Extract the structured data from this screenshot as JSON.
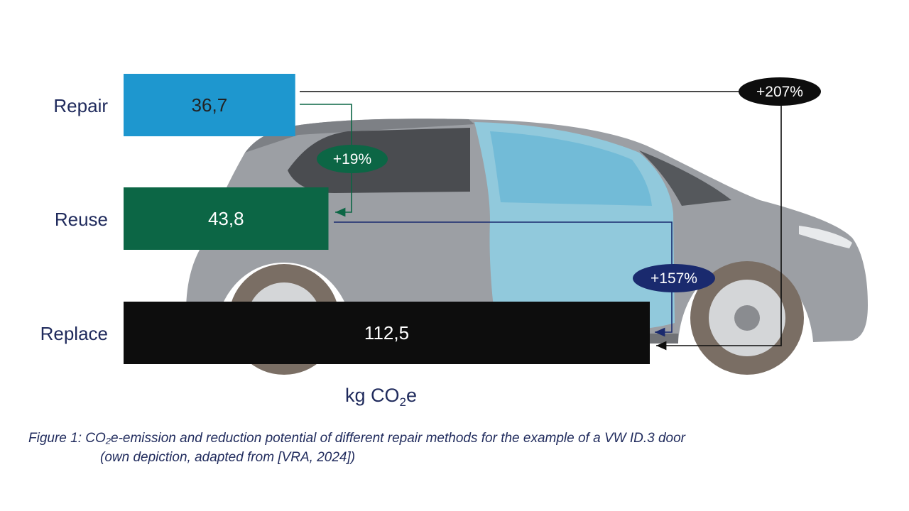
{
  "chart_data": {
    "type": "bar",
    "orientation": "horizontal",
    "categories": [
      "Repair",
      "Reuse",
      "Replace"
    ],
    "values": [
      36.7,
      43.8,
      112.5
    ],
    "value_labels": [
      "36,7",
      "43,8",
      "112,5"
    ],
    "colors": [
      "#1e97cf",
      "#0c6645",
      "#0d0d0d"
    ],
    "value_label_colors": [
      "#222222",
      "#ffffff",
      "#ffffff"
    ],
    "unit_label": {
      "prefix": "kg CO",
      "sub": "2",
      "suffix": "e"
    },
    "annotations": [
      {
        "from": "Repair",
        "to": "Reuse",
        "text": "+19%",
        "color": "#0c6645"
      },
      {
        "from": "Reuse",
        "to": "Replace",
        "text": "+157%",
        "color": "#1a2a6e"
      },
      {
        "from": "Repair",
        "to": "Replace",
        "text": "+207%",
        "color": "#0d0d0d"
      }
    ],
    "background_image": "car"
  },
  "caption": {
    "line1": "Figure 1: CO₂e-emission and reduction potential of different repair methods for the example of a VW ID.3 door",
    "line2": "(own depiction, adapted from [VRA, 2024])"
  }
}
